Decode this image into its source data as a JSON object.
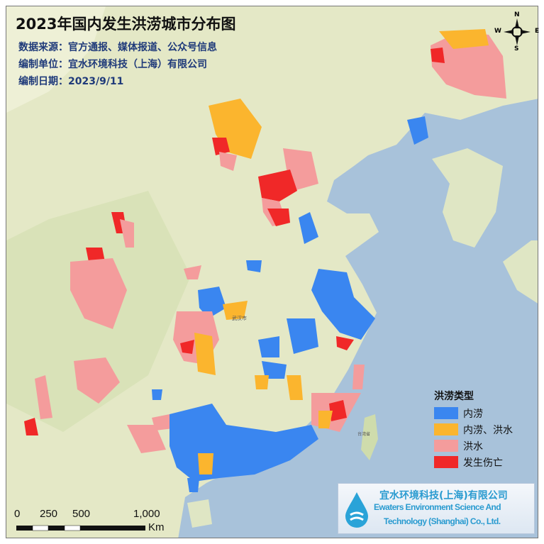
{
  "title": "2023年国内发生洪涝城市分布图",
  "info": {
    "source": "数据来源：官方通报、媒体报道、公众号信息",
    "unit": "编制单位：宜水环境科技（上海）有限公司",
    "date": "编制日期：2023/9/11"
  },
  "legend": {
    "title": "洪涝类型",
    "items": [
      {
        "label": "内涝",
        "color": "#3a86f0"
      },
      {
        "label": "内涝、洪水",
        "color": "#fbb52e"
      },
      {
        "label": "洪水",
        "color": "#f49c9c"
      },
      {
        "label": "发生伤亡",
        "color": "#f02828"
      }
    ]
  },
  "logo": {
    "cn": "宜水环境科技(上海)有限公司",
    "en1": "Ewaters Environment Science And",
    "en2": "Technology (Shanghai) Co., Ltd."
  },
  "scale_bar": {
    "ticks": [
      "0",
      "250",
      "500",
      "1,000"
    ],
    "unit": "Km"
  },
  "compass": {
    "n": "N",
    "s": "S",
    "e": "E",
    "w": "W"
  },
  "map_labels": {
    "wuhan": "武汉市",
    "taiwan": "台湾省"
  },
  "colors": {
    "land": "#e4e8c6",
    "sea": "#a8c2da"
  }
}
